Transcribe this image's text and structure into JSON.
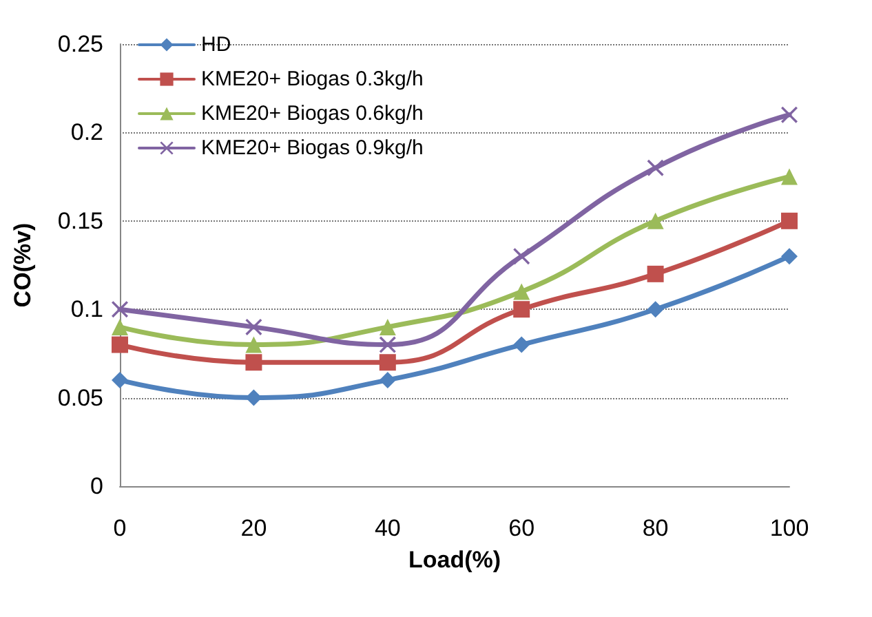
{
  "chart_data": {
    "type": "line",
    "xlabel": "Load(%)",
    "ylabel": "CO(%v)",
    "x": [
      0,
      20,
      40,
      60,
      80,
      100
    ],
    "series": [
      {
        "name": "HD",
        "color": "#4f81bd",
        "marker": "diamond",
        "values": [
          0.06,
          0.05,
          0.06,
          0.08,
          0.1,
          0.13
        ]
      },
      {
        "name": "KME20+ Biogas 0.3kg/h",
        "color": "#c0504d",
        "marker": "square",
        "values": [
          0.08,
          0.07,
          0.07,
          0.1,
          0.12,
          0.15
        ]
      },
      {
        "name": "KME20+ Biogas 0.6kg/h",
        "color": "#9bbb59",
        "marker": "triangle",
        "values": [
          0.09,
          0.08,
          0.09,
          0.11,
          0.15,
          0.175
        ]
      },
      {
        "name": "KME20+ Biogas 0.9kg/h",
        "color": "#8064a2",
        "marker": "cross",
        "values": [
          0.1,
          0.09,
          0.08,
          0.13,
          0.18,
          0.21
        ]
      }
    ],
    "xlim": [
      0,
      100
    ],
    "xticks": [
      0,
      20,
      40,
      60,
      80,
      100
    ],
    "ylim": [
      0,
      0.25
    ],
    "yticks": [
      0,
      0.05,
      0.1,
      0.15,
      0.2,
      0.25
    ],
    "grid": "y",
    "legend": "top left",
    "line_style": "solid"
  }
}
